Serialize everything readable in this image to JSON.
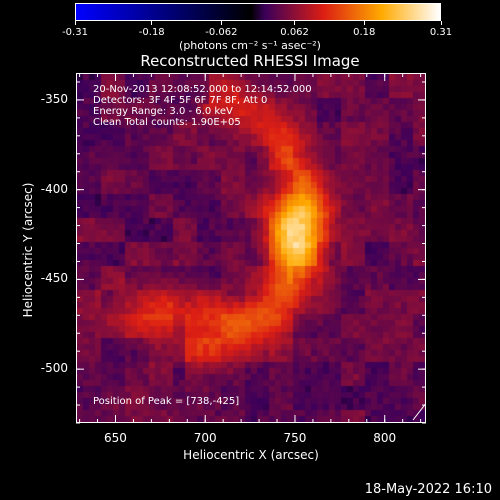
{
  "colorbar": {
    "ticks": [
      "-0.31",
      "-0.18",
      "-0.062",
      "0.062",
      "0.18",
      "0.31"
    ],
    "tick_values": [
      -0.31,
      -0.18,
      -0.062,
      0.062,
      0.18,
      0.31
    ],
    "min": -0.31,
    "max": 0.31,
    "units": "(photons cm⁻² s⁻¹ asec⁻²)"
  },
  "title": "Reconstructed RHESSI Image",
  "annotations": {
    "time": "20-Nov-2013 12:08:52.000 to 12:14:52.000",
    "detectors": "Detectors: 3F 4F 5F 6F 7F 8F, Att 0",
    "energy": "Energy Range: 3.0 - 6.0 keV",
    "method": "Clean     Total counts: 1.90E+05",
    "peak": "Position of Peak = [738,-425]"
  },
  "axes": {
    "xlabel": "Heliocentric X (arcsec)",
    "ylabel": "Heliocentric Y (arcsec)",
    "xticks": [
      "650",
      "700",
      "750",
      "800"
    ],
    "xtick_values": [
      650,
      700,
      750,
      800
    ],
    "yticks": [
      "-350",
      "-400",
      "-450",
      "-500"
    ],
    "ytick_values": [
      -350,
      -400,
      -450,
      -500
    ],
    "xlim": [
      628,
      823
    ],
    "ylim": [
      -530,
      -335
    ]
  },
  "timestamp": "18-May-2022 16:10"
}
